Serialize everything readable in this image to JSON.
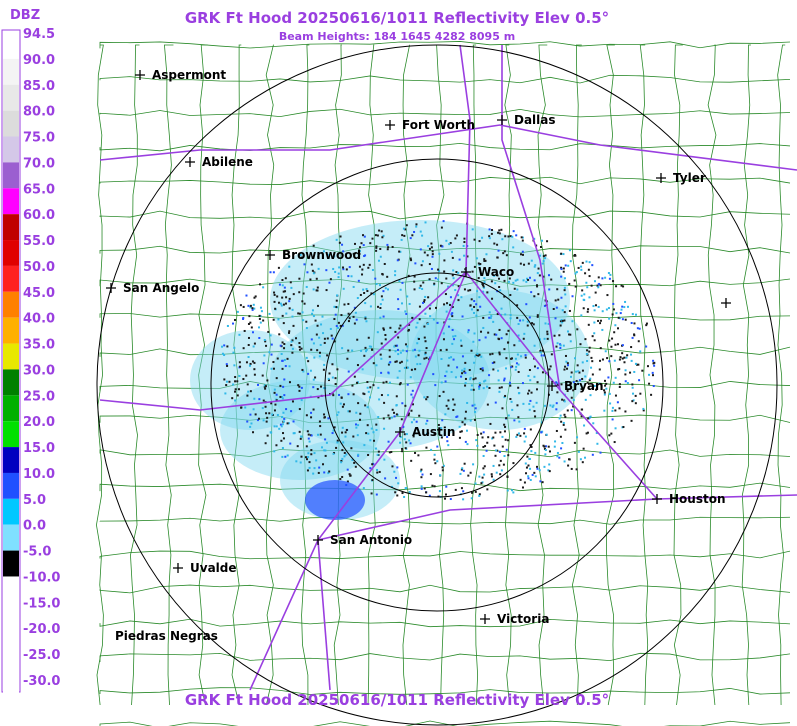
{
  "header": {
    "title": "GRK Ft Hood 20250616/1011 Reflectivity Elev 0.5°",
    "subtitle": "Beam Heights: 184 1645 4282 8095 m"
  },
  "footer": {
    "title": "GRK Ft Hood 20250616/1011 Reflectivity Elev 0.5°"
  },
  "legend": {
    "title": "DBZ",
    "items": [
      {
        "label": "94.5",
        "color": "#ffffff"
      },
      {
        "label": "90.0",
        "color": "#f4f4f4"
      },
      {
        "label": "85.0",
        "color": "#e8e8e8"
      },
      {
        "label": "80.0",
        "color": "#dcdcdc"
      },
      {
        "label": "75.0",
        "color": "#d4c8e8"
      },
      {
        "label": "70.0",
        "color": "#9b5fd0"
      },
      {
        "label": "65.0",
        "color": "#ff00ff"
      },
      {
        "label": "60.0",
        "color": "#c00000"
      },
      {
        "label": "55.0",
        "color": "#e00000"
      },
      {
        "label": "50.0",
        "color": "#ff2020"
      },
      {
        "label": "45.0",
        "color": "#ff8000"
      },
      {
        "label": "40.0",
        "color": "#ffb000"
      },
      {
        "label": "35.0",
        "color": "#e8e800"
      },
      {
        "label": "30.0",
        "color": "#008000"
      },
      {
        "label": "25.0",
        "color": "#00b000"
      },
      {
        "label": "20.0",
        "color": "#00e000"
      },
      {
        "label": "15.0",
        "color": "#0000c0"
      },
      {
        "label": "10.0",
        "color": "#2050ff"
      },
      {
        "label": "5.0",
        "color": "#00c8ff"
      },
      {
        "label": "0.0",
        "color": "#80e0ff"
      },
      {
        "label": "-5.0",
        "color": "#000000"
      },
      {
        "label": "-10.0",
        "color": "#ffffff"
      },
      {
        "label": "-15.0",
        "color": "#ffffff"
      },
      {
        "label": "-20.0",
        "color": "#ffffff"
      },
      {
        "label": "-25.0",
        "color": "#ffffff"
      },
      {
        "label": "-30.0",
        "color": "#ffffff"
      }
    ]
  },
  "cities": [
    {
      "label": "Aspermont"
    },
    {
      "label": "Fort Worth"
    },
    {
      "label": "Dallas"
    },
    {
      "label": "Abilene"
    },
    {
      "label": "Tyler"
    },
    {
      "label": "Brownwood"
    },
    {
      "label": "Waco"
    },
    {
      "label": "San Angelo"
    },
    {
      "label": "Bryan"
    },
    {
      "label": "Austin"
    },
    {
      "label": "Houston"
    },
    {
      "label": "San Antonio"
    },
    {
      "label": "Uvalde"
    },
    {
      "label": "Piedras Negras"
    },
    {
      "label": "Victoria"
    }
  ]
}
